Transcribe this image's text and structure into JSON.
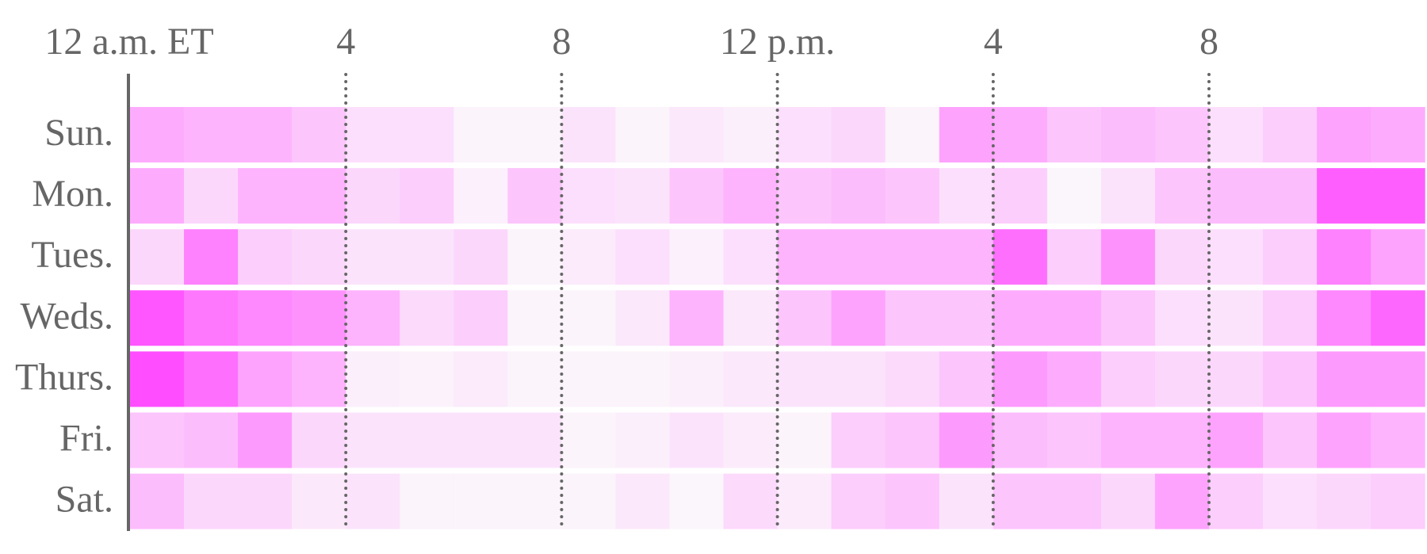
{
  "chart_data": {
    "type": "heatmap",
    "x_labels": [
      "12 a.m. ET",
      null,
      null,
      null,
      "4",
      null,
      null,
      null,
      "8",
      null,
      null,
      null,
      "12 p.m.",
      null,
      null,
      null,
      "4",
      null,
      null,
      null,
      "8",
      null,
      null,
      null
    ],
    "rows": [
      "Sun.",
      "Mon.",
      "Tues.",
      "Weds.",
      "Thurs.",
      "Fri.",
      "Sat."
    ],
    "values": [
      [
        45,
        40,
        40,
        30,
        15,
        15,
        3,
        3,
        12,
        3,
        10,
        6,
        15,
        20,
        3,
        50,
        45,
        30,
        35,
        30,
        15,
        25,
        50,
        45
      ],
      [
        45,
        20,
        40,
        40,
        20,
        25,
        5,
        30,
        15,
        12,
        30,
        40,
        30,
        35,
        30,
        15,
        25,
        2,
        12,
        30,
        35,
        35,
        90,
        90
      ],
      [
        20,
        70,
        25,
        20,
        12,
        12,
        20,
        3,
        8,
        15,
        5,
        15,
        40,
        40,
        40,
        40,
        80,
        25,
        60,
        20,
        15,
        25,
        70,
        50
      ],
      [
        95,
        75,
        65,
        60,
        40,
        18,
        25,
        3,
        3,
        10,
        40,
        10,
        30,
        50,
        30,
        30,
        45,
        45,
        30,
        15,
        12,
        25,
        65,
        85
      ],
      [
        100,
        80,
        50,
        40,
        6,
        4,
        8,
        3,
        3,
        3,
        6,
        10,
        12,
        12,
        18,
        30,
        55,
        45,
        25,
        20,
        20,
        30,
        55,
        55
      ],
      [
        30,
        35,
        55,
        20,
        12,
        12,
        12,
        12,
        3,
        6,
        12,
        8,
        3,
        25,
        30,
        55,
        35,
        30,
        40,
        40,
        50,
        30,
        50,
        40
      ],
      [
        35,
        20,
        20,
        10,
        12,
        3,
        3,
        3,
        3,
        10,
        2,
        18,
        8,
        25,
        30,
        12,
        30,
        30,
        20,
        50,
        25,
        15,
        20,
        25
      ]
    ],
    "zlim": [
      0,
      100
    ],
    "colors": [
      "#fbf9fb",
      "#ff4dff"
    ]
  }
}
